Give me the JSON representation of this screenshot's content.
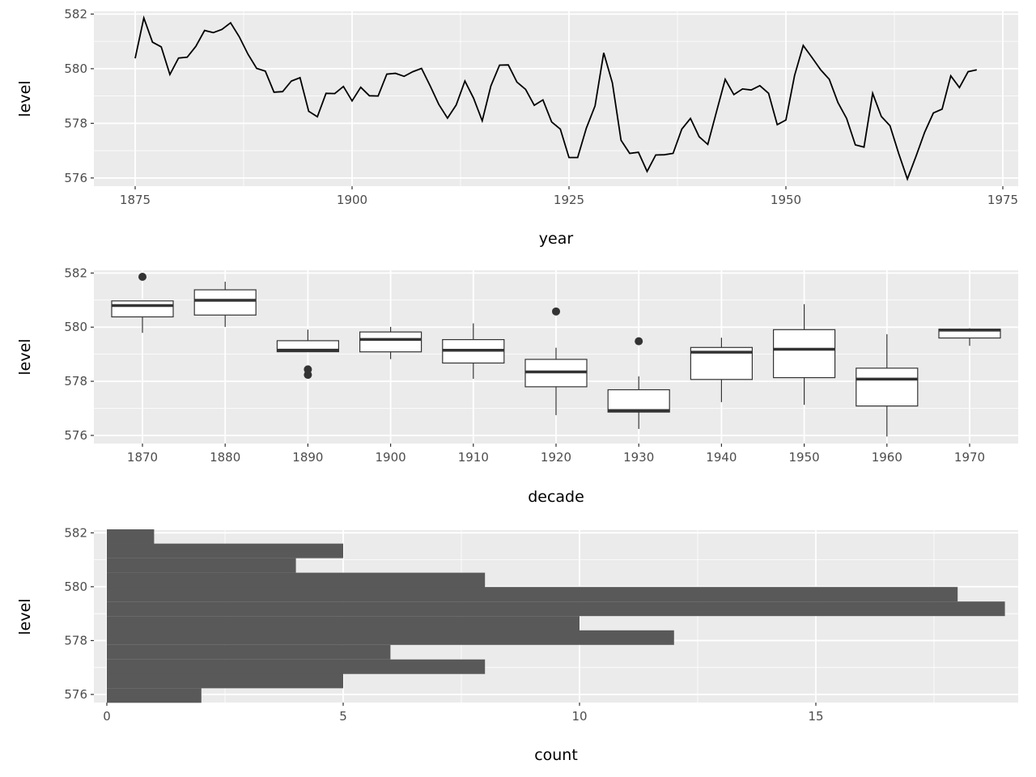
{
  "chart_data": [
    {
      "type": "line",
      "xlabel": "year",
      "ylabel": "level",
      "xlim": [
        1871,
        1976
      ],
      "ylim": [
        575.7,
        582.1
      ],
      "x_ticks": [
        1875,
        1900,
        1925,
        1950,
        1975
      ],
      "y_ticks": [
        576,
        578,
        580,
        582
      ],
      "grid": true,
      "line_color": "#000000",
      "x": [
        1875,
        1876,
        1877,
        1878,
        1879,
        1880,
        1881,
        1882,
        1883,
        1884,
        1885,
        1886,
        1887,
        1888,
        1889,
        1890,
        1891,
        1892,
        1893,
        1894,
        1895,
        1896,
        1897,
        1898,
        1899,
        1900,
        1901,
        1902,
        1903,
        1904,
        1905,
        1906,
        1907,
        1908,
        1909,
        1910,
        1911,
        1912,
        1913,
        1914,
        1915,
        1916,
        1917,
        1918,
        1919,
        1920,
        1921,
        1922,
        1923,
        1924,
        1925,
        1926,
        1927,
        1928,
        1929,
        1930,
        1931,
        1932,
        1933,
        1934,
        1935,
        1936,
        1937,
        1938,
        1939,
        1940,
        1941,
        1942,
        1943,
        1944,
        1945,
        1946,
        1947,
        1948,
        1949,
        1950,
        1951,
        1952,
        1953,
        1954,
        1955,
        1956,
        1957,
        1958,
        1959,
        1960,
        1961,
        1962,
        1963,
        1964,
        1965,
        1966,
        1967,
        1968,
        1969,
        1970,
        1971,
        1972
      ],
      "y": [
        580.38,
        581.86,
        580.97,
        580.8,
        579.79,
        580.39,
        580.42,
        580.82,
        581.4,
        581.32,
        581.44,
        581.68,
        581.17,
        580.53,
        580.01,
        579.91,
        579.14,
        579.16,
        579.55,
        579.67,
        578.44,
        578.24,
        579.1,
        579.09,
        579.35,
        578.82,
        579.32,
        579.01,
        579.0,
        579.8,
        579.83,
        579.72,
        579.89,
        580.01,
        579.37,
        578.69,
        578.19,
        578.67,
        579.55,
        578.92,
        578.09,
        579.37,
        580.13,
        580.14,
        579.51,
        579.24,
        578.66,
        578.86,
        578.05,
        577.79,
        576.75,
        576.75,
        577.82,
        578.64,
        580.58,
        579.48,
        577.38,
        576.9,
        576.94,
        576.24,
        576.84,
        576.85,
        576.9,
        577.79,
        578.18,
        577.51,
        577.23,
        578.42,
        579.61,
        579.05,
        579.26,
        579.22,
        579.38,
        579.1,
        577.95,
        578.12,
        579.75,
        580.85,
        580.41,
        579.96,
        579.61,
        578.76,
        578.18,
        577.21,
        577.13,
        579.1,
        578.25,
        577.91,
        576.89,
        575.96,
        576.8,
        577.68,
        578.38,
        578.52,
        579.74,
        579.31,
        579.89,
        579.96
      ]
    },
    {
      "type": "boxplot",
      "xlabel": "decade",
      "ylabel": "level",
      "categories": [
        "1870",
        "1880",
        "1890",
        "1900",
        "1910",
        "1920",
        "1930",
        "1940",
        "1950",
        "1960",
        "1970"
      ],
      "ylim": [
        575.7,
        582.1
      ],
      "y_ticks": [
        576,
        578,
        580,
        582
      ],
      "grid": true,
      "box_fill": "#FFFFFF",
      "box_line": "#333333"
    },
    {
      "type": "bar",
      "orientation": "horizontal",
      "xlabel": "count",
      "ylabel": "level",
      "bin_centers": [
        575.96,
        576.5,
        577.03,
        577.57,
        578.11,
        578.64,
        579.18,
        579.72,
        580.25,
        580.79,
        581.33,
        581.86
      ],
      "values": [
        2,
        5,
        8,
        6,
        12,
        10,
        19,
        18,
        8,
        4,
        5,
        1
      ],
      "xlim": [
        -0.55,
        19.55
      ],
      "ylim": [
        575.7,
        582.1
      ],
      "x_ticks": [
        0,
        5,
        10,
        15
      ],
      "y_ticks": [
        576,
        578,
        580,
        582
      ],
      "grid": true,
      "bar_color": "#595959"
    }
  ]
}
